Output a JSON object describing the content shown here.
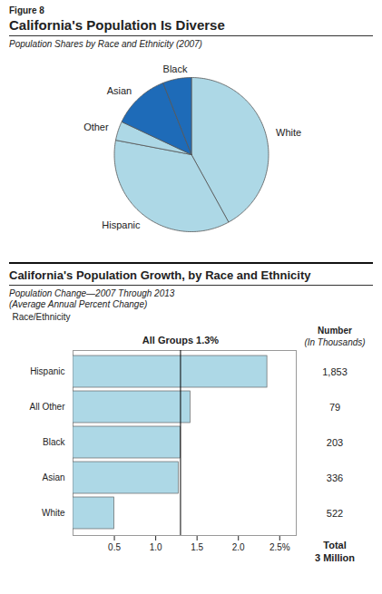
{
  "chart_data": [
    {
      "type": "pie",
      "title": "California's Population Is Diverse",
      "subtitle": "Population Shares by Race and Ethnicity (2007)",
      "annotations": [
        {
          "text": "Figure 8"
        }
      ],
      "categories": [
        "White",
        "Hispanic",
        "Other",
        "Asian",
        "Black"
      ],
      "values": [
        42,
        36,
        4,
        12,
        6
      ],
      "colors": [
        "#add8e6",
        "#add8e6",
        "#add8e6",
        "#1e6bb8",
        "#1e6bb8"
      ]
    },
    {
      "type": "bar",
      "orientation": "horizontal",
      "title": "California's Population Growth, by Race and Ethnicity",
      "subtitle": [
        "Population Change—2007 Through 2013",
        "(Average Annual Percent Change)"
      ],
      "ylabel": "Race/Ethnicity",
      "categories": [
        "White",
        "Asian",
        "Black",
        "All Other",
        "Hispanic"
      ],
      "values": [
        0.5,
        1.28,
        1.3,
        1.42,
        2.35
      ],
      "color": "#add8e6",
      "xlim": [
        0,
        2.7
      ],
      "xticks": [
        0.5,
        {
          "value": 1,
          "label": "1.0"
        },
        1.5,
        {
          "value": 2,
          "label": "2.0"
        },
        {
          "value": 2.5,
          "label": "2.5%"
        }
      ],
      "grid": false,
      "annotations": [
        {
          "x": 1.3,
          "text": "All Groups 1.3%"
        }
      ],
      "numbers": {
        "title": "Number",
        "subtitle": "(In Thousands)",
        "values": [
          522,
          336,
          203,
          79,
          1853
        ],
        "value_labels": [
          "522",
          "336",
          "203",
          "79",
          "1,853"
        ]
      },
      "total": {
        "title": "Total",
        "value": 3000,
        "label": "3 Million"
      }
    }
  ]
}
